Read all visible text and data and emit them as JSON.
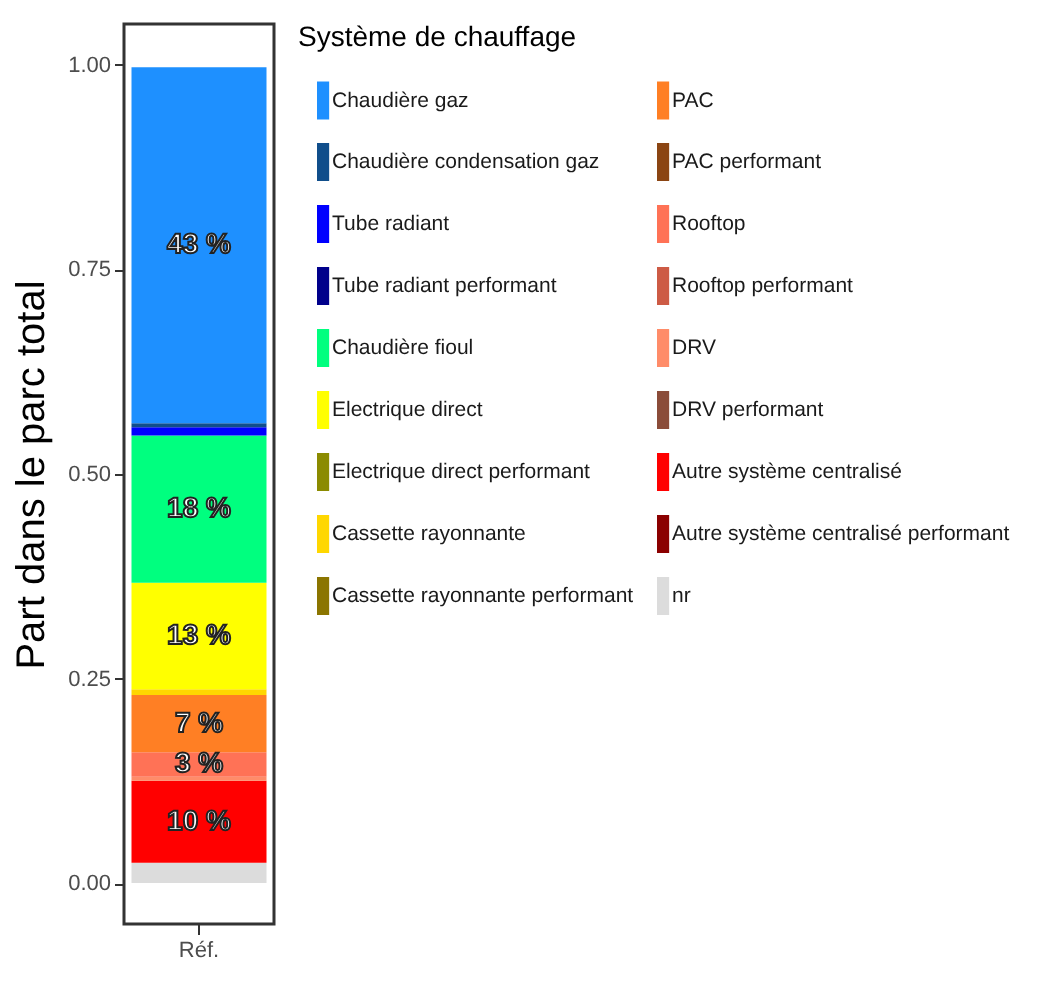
{
  "chart_data": {
    "type": "bar",
    "stacked": true,
    "ylabel": "Part dans le parc total",
    "legend_title": "Système de chauffage",
    "legend": "right",
    "categories": [
      "Réf."
    ],
    "ylim": [
      -0.05,
      1.05
    ],
    "yticks": [
      {
        "value": 0,
        "label": "0.00"
      },
      {
        "value": 0.25,
        "label": "0.25"
      },
      {
        "value": 0.5,
        "label": "0.50"
      },
      {
        "value": 0.75,
        "label": "0.75"
      },
      {
        "value": 1,
        "label": "1.00"
      }
    ],
    "series": [
      {
        "name": "nr",
        "color": "#dcdcdc",
        "values": [
          0.025
        ],
        "value_labels": [
          null
        ]
      },
      {
        "name": "Autre système centralisé performant",
        "color": "#8b0000",
        "values": [
          0
        ],
        "value_labels": [
          null
        ]
      },
      {
        "name": "Autre système centralisé",
        "color": "#ff0000",
        "values": [
          0.1
        ],
        "value_labels": [
          "10 %"
        ]
      },
      {
        "name": "DRV performant",
        "color": "#8b4c39",
        "values": [
          0
        ],
        "value_labels": [
          null
        ]
      },
      {
        "name": "DRV",
        "color": "#ff8c69",
        "values": [
          0.005
        ],
        "value_labels": [
          null
        ]
      },
      {
        "name": "Rooftop performant",
        "color": "#cd5b45",
        "values": [
          0
        ],
        "value_labels": [
          null
        ]
      },
      {
        "name": "Rooftop",
        "color": "#ff7256",
        "values": [
          0.03
        ],
        "value_labels": [
          "3 %"
        ]
      },
      {
        "name": "PAC performant",
        "color": "#8b4513",
        "values": [
          0
        ],
        "value_labels": [
          null
        ]
      },
      {
        "name": "PAC",
        "color": "#ff7f24",
        "values": [
          0.07
        ],
        "value_labels": [
          "7 %"
        ]
      },
      {
        "name": "Cassette rayonnante performant",
        "color": "#8b7500",
        "values": [
          0
        ],
        "value_labels": [
          null
        ]
      },
      {
        "name": "Cassette rayonnante",
        "color": "#ffd700",
        "values": [
          0.007
        ],
        "value_labels": [
          null
        ]
      },
      {
        "name": "Electrique direct performant",
        "color": "#8b8b00",
        "values": [
          0
        ],
        "value_labels": [
          null
        ]
      },
      {
        "name": "Electrique direct",
        "color": "#ffff00",
        "values": [
          0.13
        ],
        "value_labels": [
          "13 %"
        ]
      },
      {
        "name": "Chaudière fioul",
        "color": "#00ff7f",
        "values": [
          0.18
        ],
        "value_labels": [
          "18 %"
        ]
      },
      {
        "name": "Tube radiant performant",
        "color": "#00008b",
        "values": [
          0
        ],
        "value_labels": [
          null
        ]
      },
      {
        "name": "Tube radiant",
        "color": "#0000ff",
        "values": [
          0.01
        ],
        "value_labels": [
          null
        ]
      },
      {
        "name": "Chaudière condensation gaz",
        "color": "#104e8b",
        "values": [
          0.005
        ],
        "value_labels": [
          null
        ]
      },
      {
        "name": "Chaudière gaz",
        "color": "#1e90ff",
        "values": [
          0.435
        ],
        "value_labels": [
          "43 %"
        ]
      }
    ]
  }
}
